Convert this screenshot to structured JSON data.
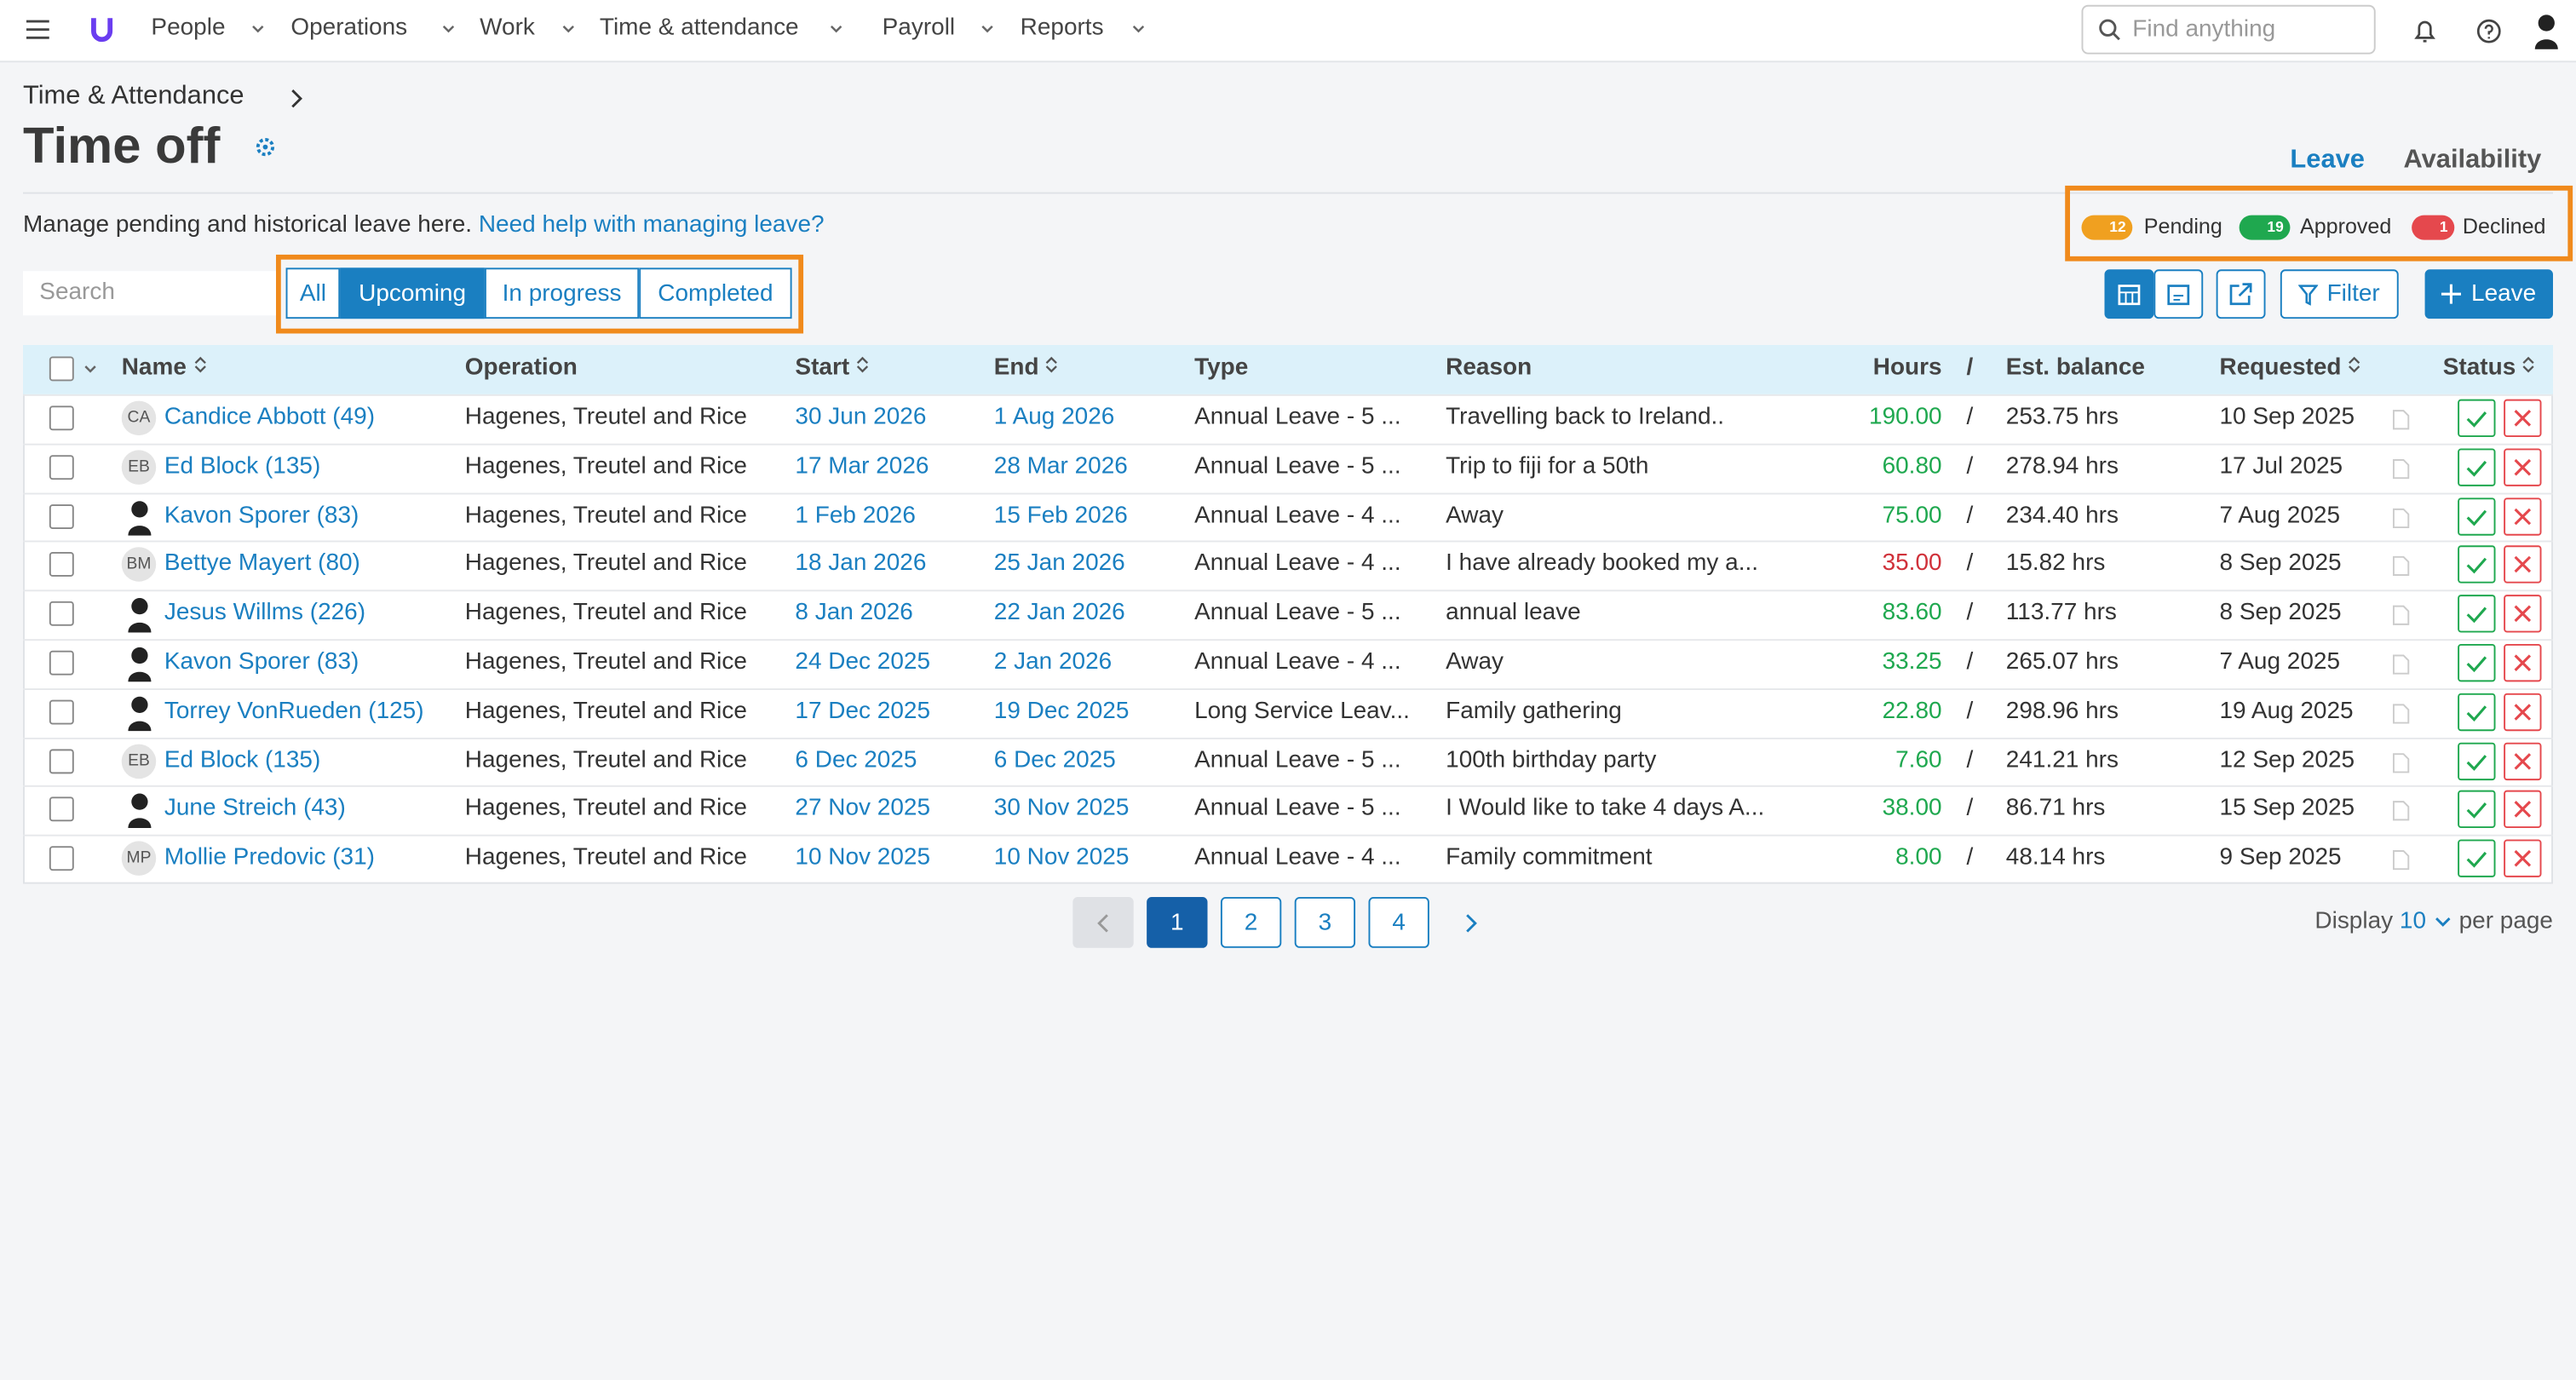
{
  "nav": {
    "items": [
      "People",
      "Operations",
      "Work",
      "Time & attendance",
      "Payroll",
      "Reports"
    ],
    "search_placeholder": "Find anything"
  },
  "breadcrumb": "Time & Attendance",
  "title": "Time off",
  "view_tabs": [
    "Leave",
    "Availability"
  ],
  "description": "Manage pending and historical leave here.",
  "help_link": "Need help with managing leave?",
  "status_counts": [
    {
      "count": "12",
      "label": "Pending",
      "color": "#f0a020"
    },
    {
      "count": "19",
      "label": "Approved",
      "color": "#1fa84f"
    },
    {
      "count": "1",
      "label": "Declined",
      "color": "#e5484d"
    }
  ],
  "search_placeholder": "Search",
  "filters": [
    "All",
    "Upcoming",
    "In progress",
    "Completed"
  ],
  "active_filter": 1,
  "filter_button": "Filter",
  "add_button": "Leave",
  "table": {
    "headers": [
      "Name",
      "Operation",
      "Start",
      "End",
      "Type",
      "Reason",
      "Hours",
      "/",
      "Est. balance",
      "Requested",
      "Status"
    ],
    "rows": [
      {
        "avatar": "CA",
        "name": "Candice Abbott (49)",
        "operation": "Hagenes, Treutel and Rice",
        "start": "30 Jun 2026",
        "end": "1 Aug 2026",
        "type": "Annual Leave - 5 ...",
        "reason": "Travelling back to Ireland..",
        "hours": "190.00",
        "hours_color": "#1fa84f",
        "balance": "253.75 hrs",
        "requested": "10 Sep 2025"
      },
      {
        "avatar": "EB",
        "name": "Ed Block (135)",
        "operation": "Hagenes, Treutel and Rice",
        "start": "17 Mar 2026",
        "end": "28 Mar 2026",
        "type": "Annual Leave - 5 ...",
        "reason": "Trip to fiji for a 50th",
        "hours": "60.80",
        "hours_color": "#1fa84f",
        "balance": "278.94 hrs",
        "requested": "17 Jul 2025"
      },
      {
        "name": "Kavon Sporer (83)",
        "operation": "Hagenes, Treutel and Rice",
        "start": "1 Feb 2026",
        "end": "15 Feb 2026",
        "type": "Annual Leave - 4 ...",
        "reason": "Away",
        "hours": "75.00",
        "hours_color": "#1fa84f",
        "balance": "234.40 hrs",
        "requested": "7 Aug 2025"
      },
      {
        "avatar": "BM",
        "name": "Bettye Mayert (80)",
        "operation": "Hagenes, Treutel and Rice",
        "start": "18 Jan 2026",
        "end": "25 Jan 2026",
        "type": "Annual Leave - 4 ...",
        "reason": "I have already booked my a...",
        "hours": "35.00",
        "hours_color": "#d0313a",
        "balance": "15.82 hrs",
        "requested": "8 Sep 2025"
      },
      {
        "name": "Jesus Willms (226)",
        "operation": "Hagenes, Treutel and Rice",
        "start": "8 Jan 2026",
        "end": "22 Jan 2026",
        "type": "Annual Leave - 5 ...",
        "reason": "annual leave",
        "hours": "83.60",
        "hours_color": "#1fa84f",
        "balance": "113.77 hrs",
        "requested": "8 Sep 2025"
      },
      {
        "name": "Kavon Sporer (83)",
        "operation": "Hagenes, Treutel and Rice",
        "start": "24 Dec 2025",
        "end": "2 Jan 2026",
        "type": "Annual Leave - 4 ...",
        "reason": "Away",
        "hours": "33.25",
        "hours_color": "#1fa84f",
        "balance": "265.07 hrs",
        "requested": "7 Aug 2025"
      },
      {
        "name": "Torrey VonRueden (125)",
        "operation": "Hagenes, Treutel and Rice",
        "start": "17 Dec 2025",
        "end": "19 Dec 2025",
        "type": "Long Service Leav...",
        "reason": "Family gathering",
        "hours": "22.80",
        "hours_color": "#1fa84f",
        "balance": "298.96 hrs",
        "requested": "19 Aug 2025"
      },
      {
        "avatar": "EB",
        "name": "Ed Block (135)",
        "operation": "Hagenes, Treutel and Rice",
        "start": "6 Dec 2025",
        "end": "6 Dec 2025",
        "type": "Annual Leave - 5 ...",
        "reason": "100th birthday party",
        "hours": "7.60",
        "hours_color": "#1fa84f",
        "balance": "241.21 hrs",
        "requested": "12 Sep 2025"
      },
      {
        "name": "June Streich (43)",
        "operation": "Hagenes, Treutel and Rice",
        "start": "27 Nov 2025",
        "end": "30 Nov 2025",
        "type": "Annual Leave - 5 ...",
        "reason": "I Would like to take 4 days A...",
        "hours": "38.00",
        "hours_color": "#1fa84f",
        "balance": "86.71 hrs",
        "requested": "15 Sep 2025"
      },
      {
        "avatar": "MP",
        "name": "Mollie Predovic (31)",
        "operation": "Hagenes, Treutel and Rice",
        "start": "10 Nov 2025",
        "end": "10 Nov 2025",
        "type": "Annual Leave - 4 ...",
        "reason": "Family commitment",
        "hours": "8.00",
        "hours_color": "#1fa84f",
        "balance": "48.14 hrs",
        "requested": "9 Sep 2025"
      }
    ]
  },
  "pagination": {
    "pages": [
      "1",
      "2",
      "3",
      "4"
    ],
    "current": 0
  },
  "per_page": {
    "prefix": "Display",
    "value": "10",
    "suffix": "per page"
  }
}
